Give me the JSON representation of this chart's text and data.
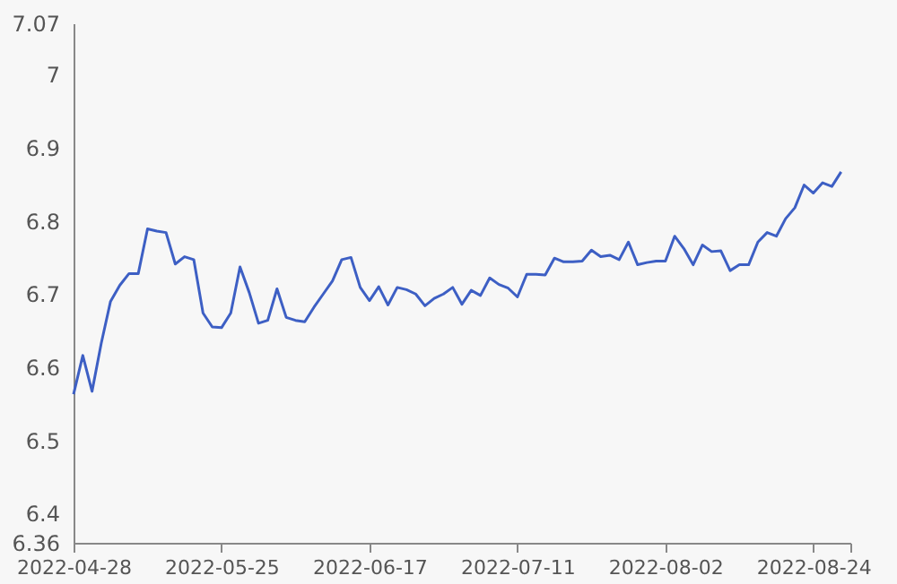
{
  "chart_data": {
    "type": "line",
    "categories": [
      "2022-04-28",
      null,
      null,
      null,
      null,
      null,
      null,
      null,
      null,
      null,
      null,
      null,
      null,
      null,
      null,
      null,
      "2022-05-25",
      null,
      null,
      null,
      null,
      null,
      null,
      null,
      null,
      null,
      null,
      null,
      null,
      null,
      null,
      null,
      "2022-06-17",
      null,
      null,
      null,
      null,
      null,
      null,
      null,
      null,
      null,
      null,
      null,
      null,
      null,
      null,
      null,
      "2022-07-11",
      null,
      null,
      null,
      null,
      null,
      null,
      null,
      null,
      null,
      null,
      null,
      null,
      null,
      null,
      null,
      "2022-08-02",
      null,
      null,
      null,
      null,
      null,
      null,
      null,
      null,
      null,
      null,
      null,
      null,
      null,
      null,
      null,
      "2022-08-24",
      null,
      null,
      null,
      null
    ],
    "series": [
      {
        "color": "#3d5fc4",
        "values": [
          6.563,
          6.616,
          6.567,
          6.633,
          6.69,
          6.712,
          6.728,
          6.728,
          6.789,
          6.786,
          6.784,
          6.741,
          6.751,
          6.747,
          6.674,
          6.655,
          6.654,
          6.674,
          6.737,
          6.702,
          6.66,
          6.664,
          6.707,
          6.668,
          6.664,
          6.662,
          6.682,
          6.7,
          6.718,
          6.747,
          6.75,
          6.709,
          6.691,
          6.71,
          6.685,
          6.709,
          6.706,
          6.7,
          6.684,
          6.694,
          6.7,
          6.709,
          6.686,
          6.705,
          6.698,
          6.722,
          6.713,
          6.708,
          6.696,
          6.727,
          6.727,
          6.726,
          6.749,
          6.744,
          6.744,
          6.745,
          6.76,
          6.751,
          6.753,
          6.747,
          6.771,
          6.74,
          6.743,
          6.745,
          6.745,
          6.779,
          6.762,
          6.74,
          6.767,
          6.758,
          6.759,
          6.732,
          6.74,
          6.74,
          6.771,
          6.784,
          6.779,
          6.803,
          6.818,
          6.849,
          6.838,
          6.852,
          6.847,
          6.867,
          null
        ]
      }
    ],
    "ylim": [
      6.36,
      7.07
    ],
    "yticks": [
      6.36,
      6.4,
      6.5,
      6.6,
      6.7,
      6.8,
      6.9,
      7,
      7.07
    ],
    "grid": false,
    "marker": "none",
    "line_style": "solid"
  }
}
